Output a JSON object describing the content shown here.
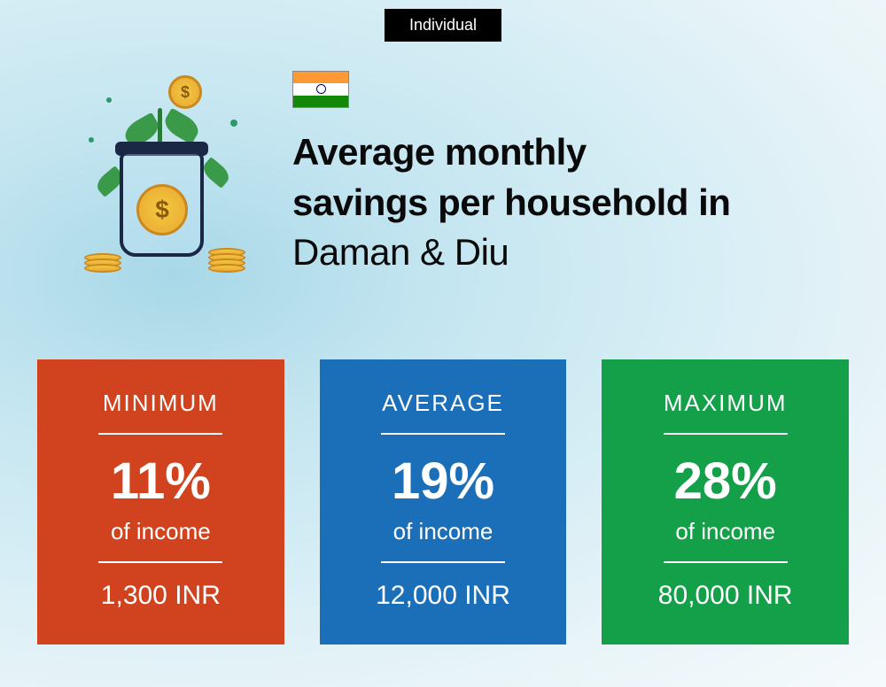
{
  "badge": "Individual",
  "title_line1": "Average monthly",
  "title_line2": "savings per household in",
  "location": "Daman & Diu",
  "flag": {
    "top_color": "#ff9933",
    "middle_color": "#ffffff",
    "bottom_color": "#138808",
    "chakra_color": "#000080"
  },
  "cards": [
    {
      "label": "MINIMUM",
      "percent": "11%",
      "sub": "of income",
      "amount": "1,300 INR",
      "background_color": "#d1431f"
    },
    {
      "label": "AVERAGE",
      "percent": "19%",
      "sub": "of income",
      "amount": "12,000 INR",
      "background_color": "#1a6fb8"
    },
    {
      "label": "MAXIMUM",
      "percent": "28%",
      "sub": "of income",
      "amount": "80,000 INR",
      "background_color": "#14a048"
    }
  ],
  "styling": {
    "badge_bg": "#000000",
    "badge_fg": "#ffffff",
    "title_color": "#0a0a0a",
    "title_fontsize": 42,
    "title_weight": 900,
    "location_weight": 400,
    "card_label_fontsize": 26,
    "card_percent_fontsize": 58,
    "card_sub_fontsize": 26,
    "card_amount_fontsize": 30,
    "divider_color": "#ffffff",
    "background_gradient": [
      "#a8d8e8",
      "#c3e5f0",
      "#d5edf5",
      "#e8f4f8",
      "#f5fafc"
    ]
  }
}
